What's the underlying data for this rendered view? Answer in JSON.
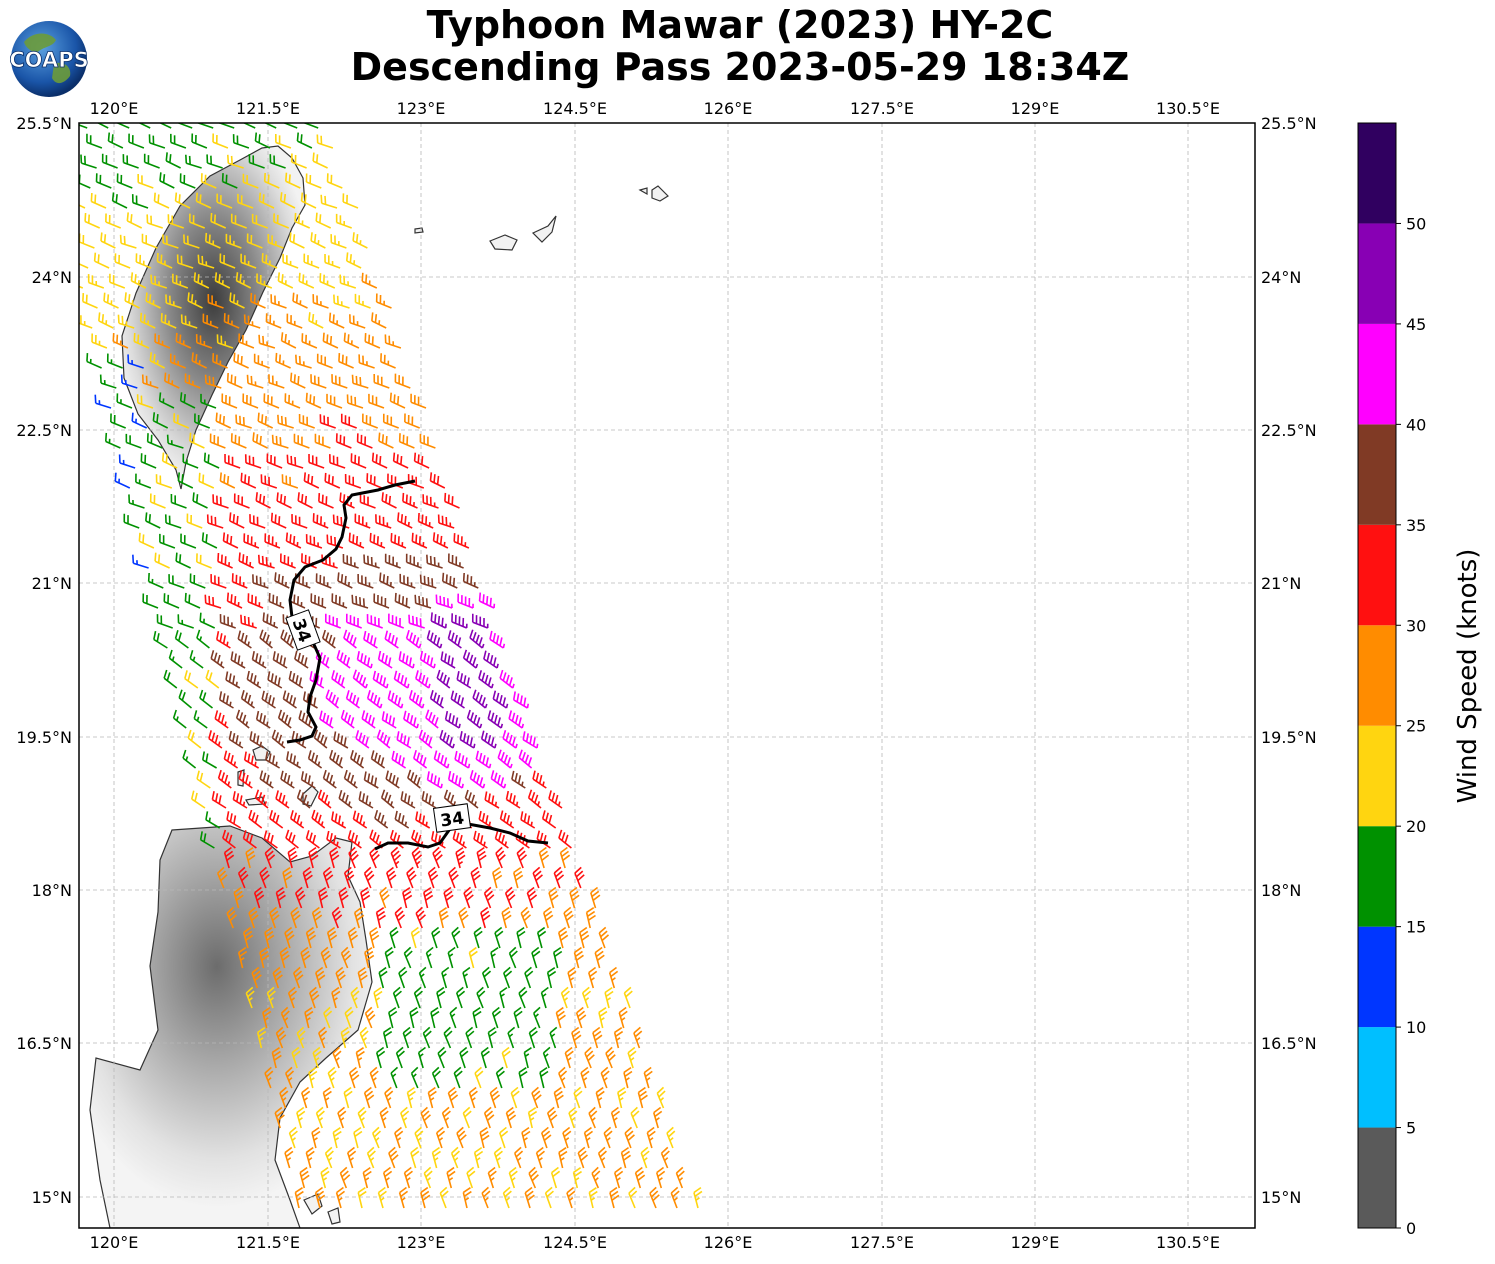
{
  "title": {
    "line1": "Typhoon Mawar (2023) HY-2C",
    "line2": "Descending Pass 2023-05-29 18:34Z"
  },
  "logo": {
    "text": "COAPS",
    "icon": "globe-icon"
  },
  "map": {
    "lon_ticks": [
      "120°E",
      "121.5°E",
      "123°E",
      "124.5°E",
      "126°E",
      "127.5°E",
      "129°E",
      "130.5°E"
    ],
    "lat_ticks": [
      "25.5°N",
      "24°N",
      "22.5°N",
      "21°N",
      "19.5°N",
      "18°N",
      "16.5°N",
      "15°N"
    ],
    "gridlines": true,
    "contour_label": "34",
    "contour_labels": [
      "34",
      "34"
    ],
    "land_color": "#f0f0f0",
    "coast_color": "#333333"
  },
  "colorbar": {
    "label": "Wind Speed (knots)",
    "ticks": [
      "0",
      "5",
      "10",
      "15",
      "20",
      "25",
      "30",
      "35",
      "40",
      "45",
      "50"
    ],
    "bins": [
      {
        "from": 0,
        "to": 5,
        "color": "#5a5a5a"
      },
      {
        "from": 5,
        "to": 10,
        "color": "#00bfff"
      },
      {
        "from": 10,
        "to": 15,
        "color": "#0036ff"
      },
      {
        "from": 15,
        "to": 20,
        "color": "#009100"
      },
      {
        "from": 20,
        "to": 25,
        "color": "#ffd510"
      },
      {
        "from": 25,
        "to": 30,
        "color": "#ff8c00"
      },
      {
        "from": 30,
        "to": 35,
        "color": "#ff1010"
      },
      {
        "from": 35,
        "to": 40,
        "color": "#803a25"
      },
      {
        "from": 40,
        "to": 45,
        "color": "#ff00ff"
      },
      {
        "from": 45,
        "to": 50,
        "color": "#8800b4"
      },
      {
        "from": 50,
        "to": 55,
        "color": "#300060"
      }
    ]
  }
}
